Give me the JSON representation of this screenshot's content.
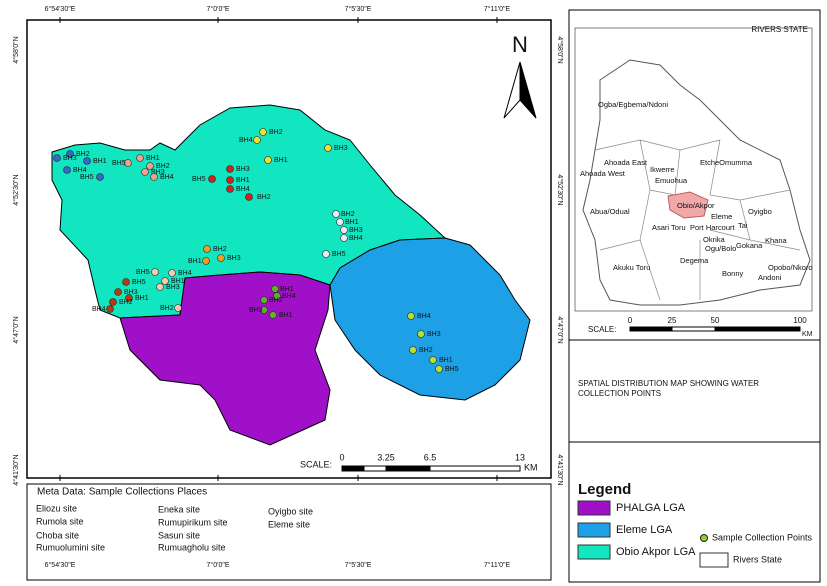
{
  "map": {
    "lon_labels": [
      "6°54'30\"E",
      "7°0'0\"E",
      "7°5'30\"E",
      "7°11'0\"E"
    ],
    "lat_labels": [
      "4°58'0\"N",
      "4°52'30\"N",
      "4°47'0\"N",
      "4°41'30\"N"
    ],
    "north": "N",
    "scale": {
      "label": "SCALE:",
      "ticks": [
        "0",
        "3.25",
        "6.5",
        "13"
      ],
      "unit": "KM"
    },
    "point_groups": [
      {
        "color": "#3a66c9",
        "labels": [
          "BH2",
          "BH3",
          "BH1",
          "BH4",
          "BH5"
        ]
      },
      {
        "color": "#f0a090",
        "labels": [
          "BH5",
          "BH1",
          "BH2",
          "BH3",
          "BH4"
        ]
      },
      {
        "color": "#d42020",
        "labels": [
          "BH3",
          "BH5",
          "BH1",
          "BH4",
          "BH2"
        ]
      },
      {
        "color": "#f2e030",
        "labels": [
          "BH2",
          "BH4",
          "BH1",
          "BH3"
        ]
      },
      {
        "color": "#f4e8f0",
        "labels": [
          "BH2",
          "BH1",
          "BH3",
          "BH4",
          "BH5"
        ]
      },
      {
        "color": "#f0a020",
        "labels": [
          "BH2",
          "BH1",
          "BH3"
        ]
      },
      {
        "color": "#f8c8b0",
        "labels": [
          "BH5",
          "BH4",
          "BH1",
          "BH3",
          "BH2"
        ]
      },
      {
        "color": "#b83a10",
        "labels": [
          "BH5",
          "BH3",
          "BH1",
          "BH2",
          "BH4"
        ]
      },
      {
        "color": "#60b030",
        "labels": [
          "BH1",
          "BH4",
          "BH2",
          "BH3",
          "BH1"
        ]
      },
      {
        "color": "#b8e030",
        "labels": [
          "BH4",
          "BH3",
          "BH2",
          "BH1",
          "BH5"
        ]
      }
    ]
  },
  "inset": {
    "title": "RIVERS STATE",
    "lgas": [
      "Ogba/Egbema/Ndoni",
      "Ahoada East",
      "Ikwerre",
      "EtcheOmumma",
      "Ahoada West",
      "Emuohua",
      "Obio/Akpor",
      "Oyigbo",
      "Abua/Odual",
      "Eleme",
      "Tai",
      "Asari Toru",
      "Port Harcourt",
      "Okrika",
      "Ogu/Bolo",
      "Gokana",
      "Khana",
      "Akuku Toru",
      "Degema",
      "Bonny",
      "Opobo/Nkoro",
      "Andoni"
    ],
    "scale": {
      "label": "SCALE:",
      "ticks": [
        "0",
        "25",
        "50",
        "100"
      ],
      "unit": "KM"
    }
  },
  "caption": [
    "SPATIAL DISTRIBUTION MAP SHOWING WATER",
    "COLLECTION POINTS"
  ],
  "legend": {
    "title": "Legend",
    "items": [
      {
        "label": "PHALGA LGA",
        "color": "#a010c8"
      },
      {
        "label": "Eleme LGA",
        "color": "#1ea0e6"
      },
      {
        "label": "Obio Akpor LGA",
        "color": "#12e6c0"
      },
      {
        "label": "Sample Collection Points",
        "color": "#90d030"
      },
      {
        "label": "Rivers State",
        "color": "#ffffff"
      }
    ]
  },
  "metadata": {
    "title": "Meta Data: Sample Collections Places",
    "columns": [
      [
        "Eliozu site",
        "Rumola site",
        "Choba site",
        "Rumuolumini site"
      ],
      [
        "Eneka site",
        "Rumupirikum site",
        "Sasun site",
        "Rumuagholu site"
      ],
      [
        "Oyigbo site",
        "Eleme site"
      ]
    ]
  }
}
